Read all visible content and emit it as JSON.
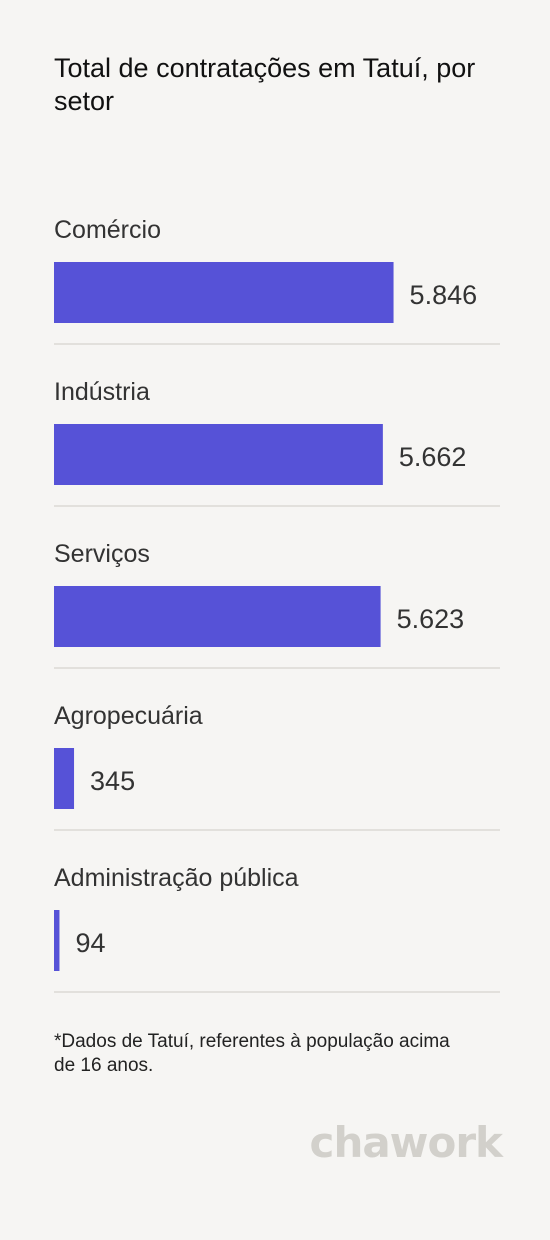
{
  "chart_data": {
    "type": "bar",
    "orientation": "horizontal",
    "title": "Total de contratações em Tatuí, por setor",
    "categories": [
      "Comércio",
      "Indústria",
      "Serviços",
      "Agropecuária",
      "Administração pública"
    ],
    "values": [
      5846,
      5662,
      5623,
      345,
      94
    ],
    "value_labels": [
      "5.846",
      "5.662",
      "5.623",
      "345",
      "94"
    ],
    "xlim": [
      0,
      7300
    ],
    "grid": false,
    "bar_color": "#5652d7"
  },
  "footnote": "*Dados de Tatuí, referentes à população acima de 16 anos.",
  "logo_text": "chawork"
}
